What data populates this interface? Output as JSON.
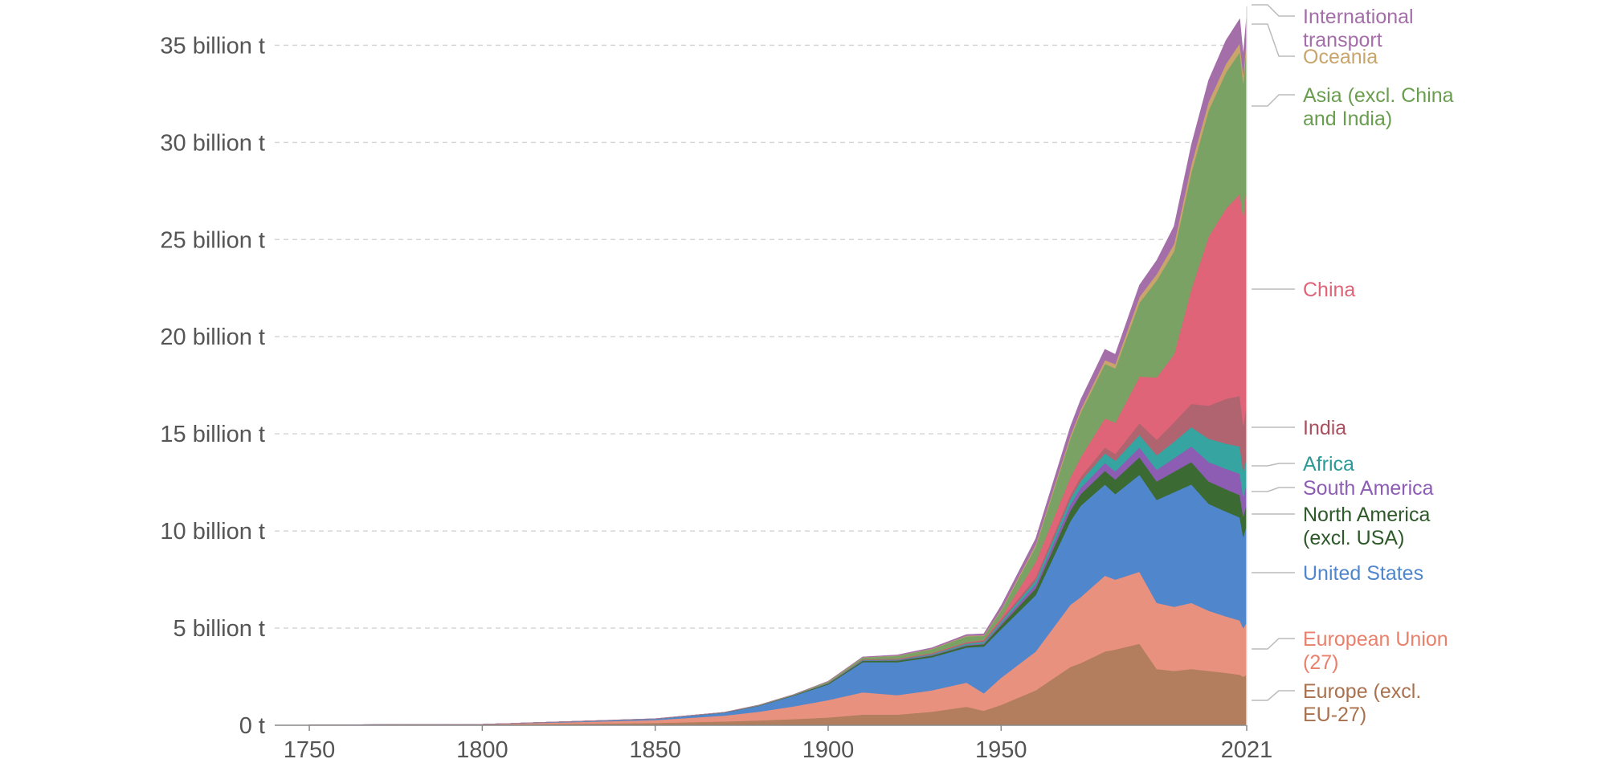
{
  "chart_data": {
    "type": "area",
    "stacked": true,
    "x_unit": "year",
    "xlim": [
      1740,
      2021
    ],
    "ylim": [
      0,
      37
    ],
    "y_unit": "billion t",
    "y_ticks": [
      {
        "value": 0,
        "label": "0 t"
      },
      {
        "value": 5,
        "label": "5 billion t"
      },
      {
        "value": 10,
        "label": "10 billion t"
      },
      {
        "value": 15,
        "label": "15 billion t"
      },
      {
        "value": 20,
        "label": "20 billion t"
      },
      {
        "value": 25,
        "label": "25 billion t"
      },
      {
        "value": 30,
        "label": "30 billion t"
      },
      {
        "value": 35,
        "label": "35 billion t"
      }
    ],
    "x_ticks": [
      {
        "value": 1750,
        "label": "1750"
      },
      {
        "value": 1800,
        "label": "1800"
      },
      {
        "value": 1850,
        "label": "1850"
      },
      {
        "value": 1900,
        "label": "1900"
      },
      {
        "value": 1950,
        "label": "1950"
      },
      {
        "value": 2021,
        "label": "2021"
      }
    ],
    "grid": true,
    "legend_placement": "right, end-of-series labels",
    "x": [
      1750,
      1800,
      1850,
      1870,
      1880,
      1890,
      1900,
      1910,
      1920,
      1930,
      1940,
      1945,
      1950,
      1960,
      1970,
      1973,
      1980,
      1983,
      1990,
      1995,
      2000,
      2005,
      2010,
      2015,
      2019,
      2020,
      2021
    ],
    "series": [
      {
        "name": "Europe (excl. EU-27)",
        "color": "#b27e5d",
        "values": [
          0.01,
          0.03,
          0.12,
          0.2,
          0.25,
          0.32,
          0.4,
          0.55,
          0.55,
          0.7,
          0.95,
          0.75,
          1.05,
          1.8,
          3.0,
          3.2,
          3.8,
          3.9,
          4.2,
          2.9,
          2.8,
          2.9,
          2.8,
          2.7,
          2.6,
          2.5,
          2.6
        ]
      },
      {
        "name": "European Union (27)",
        "color": "#e8917f",
        "values": [
          0.01,
          0.02,
          0.15,
          0.3,
          0.45,
          0.65,
          0.9,
          1.15,
          1.0,
          1.1,
          1.25,
          0.9,
          1.4,
          2.0,
          3.2,
          3.4,
          3.9,
          3.6,
          3.7,
          3.4,
          3.3,
          3.4,
          3.1,
          2.9,
          2.8,
          2.5,
          2.7
        ]
      },
      {
        "name": "United States",
        "color": "#4f86cc",
        "values": [
          0.0,
          0.0,
          0.06,
          0.15,
          0.3,
          0.55,
          0.8,
          1.55,
          1.7,
          1.7,
          1.8,
          2.4,
          2.5,
          2.9,
          4.3,
          4.7,
          4.7,
          4.4,
          5.0,
          5.3,
          5.9,
          6.1,
          5.5,
          5.4,
          5.3,
          4.7,
          5.0
        ]
      },
      {
        "name": "North America (excl. USA)",
        "color": "#3b6a33",
        "values": [
          0.0,
          0.0,
          0.0,
          0.01,
          0.02,
          0.03,
          0.05,
          0.07,
          0.08,
          0.09,
          0.1,
          0.12,
          0.2,
          0.35,
          0.55,
          0.6,
          0.7,
          0.75,
          0.9,
          0.95,
          1.05,
          1.15,
          1.15,
          1.15,
          1.15,
          1.05,
          1.1
        ]
      },
      {
        "name": "South America",
        "color": "#8d5cb3",
        "values": [
          0.0,
          0.0,
          0.0,
          0.0,
          0.0,
          0.0,
          0.01,
          0.02,
          0.02,
          0.03,
          0.04,
          0.05,
          0.1,
          0.2,
          0.3,
          0.32,
          0.4,
          0.42,
          0.5,
          0.6,
          0.7,
          0.8,
          1.0,
          1.05,
          1.1,
          1.0,
          1.05
        ]
      },
      {
        "name": "Africa",
        "color": "#36a4a0",
        "values": [
          0.0,
          0.0,
          0.0,
          0.0,
          0.0,
          0.0,
          0.01,
          0.02,
          0.03,
          0.04,
          0.06,
          0.08,
          0.1,
          0.2,
          0.3,
          0.35,
          0.5,
          0.55,
          0.65,
          0.75,
          0.85,
          1.0,
          1.2,
          1.3,
          1.4,
          1.3,
          1.4
        ]
      },
      {
        "name": "India",
        "color": "#b06470",
        "values": [
          0.0,
          0.0,
          0.0,
          0.0,
          0.0,
          0.0,
          0.02,
          0.03,
          0.04,
          0.05,
          0.06,
          0.07,
          0.1,
          0.15,
          0.2,
          0.22,
          0.3,
          0.35,
          0.6,
          0.8,
          1.0,
          1.2,
          1.7,
          2.3,
          2.6,
          2.4,
          2.7
        ]
      },
      {
        "name": "China",
        "color": "#e06478",
        "values": [
          0.0,
          0.0,
          0.0,
          0.0,
          0.0,
          0.0,
          0.0,
          0.0,
          0.01,
          0.01,
          0.02,
          0.03,
          0.1,
          0.8,
          0.9,
          1.0,
          1.5,
          1.6,
          2.4,
          3.2,
          3.5,
          5.9,
          8.7,
          9.8,
          10.4,
          10.7,
          11.3
        ]
      },
      {
        "name": "Asia (excl. China and India)",
        "color": "#7aa264",
        "values": [
          0.0,
          0.0,
          0.01,
          0.01,
          0.02,
          0.03,
          0.06,
          0.1,
          0.14,
          0.2,
          0.3,
          0.2,
          0.35,
          0.8,
          2.0,
          2.3,
          2.8,
          2.8,
          3.8,
          5.0,
          5.3,
          6.0,
          6.5,
          7.0,
          7.3,
          6.9,
          7.2
        ]
      },
      {
        "name": "Oceania",
        "color": "#c9a46b",
        "values": [
          0.0,
          0.0,
          0.0,
          0.0,
          0.0,
          0.0,
          0.01,
          0.01,
          0.02,
          0.02,
          0.03,
          0.03,
          0.05,
          0.1,
          0.15,
          0.16,
          0.2,
          0.22,
          0.3,
          0.33,
          0.38,
          0.42,
          0.45,
          0.45,
          0.46,
          0.44,
          0.45
        ]
      },
      {
        "name": "International transport",
        "color": "#a46ea9",
        "values": [
          0.0,
          0.0,
          0.0,
          0.0,
          0.0,
          0.0,
          0.01,
          0.02,
          0.03,
          0.05,
          0.06,
          0.08,
          0.2,
          0.3,
          0.45,
          0.5,
          0.55,
          0.5,
          0.6,
          0.7,
          0.9,
          1.0,
          1.1,
          1.2,
          1.25,
          1.0,
          1.05
        ]
      }
    ]
  },
  "legend": [
    {
      "lines": [
        "International",
        "transport"
      ],
      "color": "#a46ea9"
    },
    {
      "lines": [
        "Oceania"
      ],
      "color": "#c9a46b"
    },
    {
      "lines": [
        "Asia (excl. China",
        "and India)"
      ],
      "color": "#6a9e4f"
    },
    {
      "lines": [
        "China"
      ],
      "color": "#e06478"
    },
    {
      "lines": [
        "India"
      ],
      "color": "#a8505e"
    },
    {
      "lines": [
        "Africa"
      ],
      "color": "#2a9a96"
    },
    {
      "lines": [
        "South America"
      ],
      "color": "#8d5cb3"
    },
    {
      "lines": [
        "North America",
        "(excl. USA)"
      ],
      "color": "#2e5a2a"
    },
    {
      "lines": [
        "United States"
      ],
      "color": "#4f86cc"
    },
    {
      "lines": [
        "European Union",
        "(27)"
      ],
      "color": "#e8806c"
    },
    {
      "lines": [
        "Europe (excl.",
        "EU-27)"
      ],
      "color": "#a9714e"
    }
  ]
}
